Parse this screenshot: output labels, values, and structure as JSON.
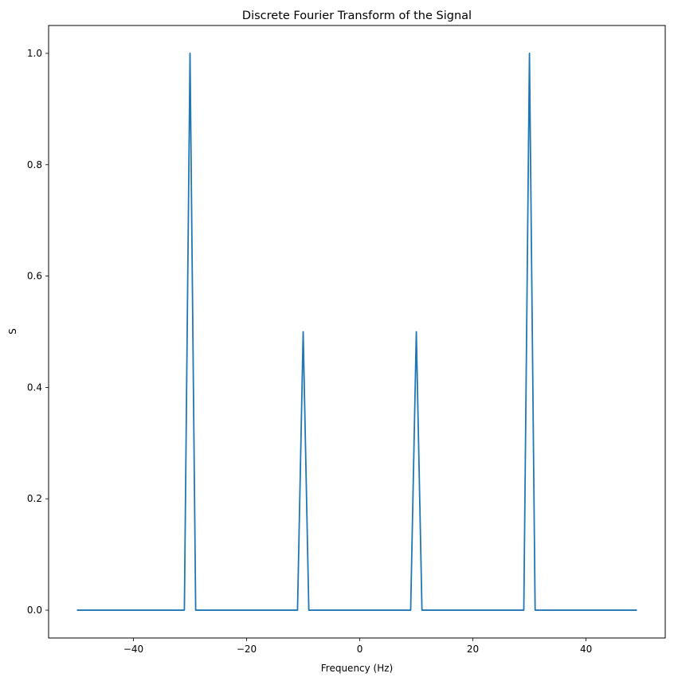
{
  "chart_data": {
    "type": "line",
    "title": "Discrete Fourier Transform of the Signal",
    "xlabel": "Frequency (Hz)",
    "ylabel": "S",
    "xlim": [
      -55,
      54
    ],
    "ylim": [
      -0.05,
      1.05
    ],
    "xticks": [
      -40,
      -20,
      0,
      20,
      40
    ],
    "xtick_labels": [
      "−40",
      "−20",
      "0",
      "20",
      "40"
    ],
    "yticks": [
      0.0,
      0.2,
      0.4,
      0.6,
      0.8,
      1.0
    ],
    "ytick_labels": [
      "0.0",
      "0.2",
      "0.4",
      "0.6",
      "0.8",
      "1.0"
    ],
    "grid": false,
    "color": "#1f77b4",
    "series": [
      {
        "x": [
          -50,
          -31,
          -30,
          -29,
          -11,
          -10,
          -9,
          9,
          10,
          11,
          29,
          30,
          31,
          49
        ],
        "y": [
          0,
          0,
          1.0,
          0,
          0,
          0.5,
          0,
          0,
          0.5,
          0,
          0,
          1.0,
          0,
          0
        ]
      }
    ]
  }
}
